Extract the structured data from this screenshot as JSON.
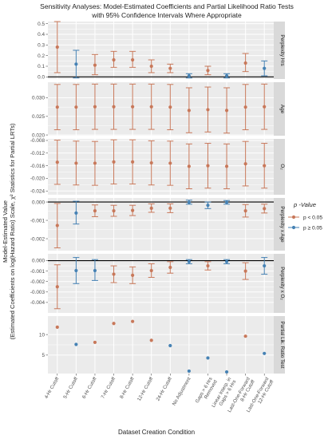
{
  "chart_data": {
    "type": "scatter",
    "title": "Sensitivity Analyses: Model-Estimated Coefficients and Partial Likelihood Ratio Tests",
    "subtitle": "with 95% Confidence Intervals Where Appropriate",
    "xlabel": "Dataset Creation Condition",
    "ylabel_line1": "Model-Estimated Value",
    "ylabel_line2": "(Estimated Coefficients on log(Hazard Ratio) Scale, χ² Statistics for Partial LRTs)",
    "categories": [
      "4-Hr Cutoff",
      "5-Hr Cutoff",
      "6-Hr Cutoff",
      "7-Hr Cutoff",
      "8-Hr Cutoff",
      "12-Hr Cutoff",
      "24-Hr Cutoff",
      "No Adjustment",
      "Gaps > 6 Hrs Removed",
      "Linear Interp. in Gaps > 6 Hrs",
      "Last-One-Forward 8-Hr Cutoff",
      "Last-One-Forward 12-Hr Cutoff"
    ],
    "legend": {
      "title": "p -Value",
      "entries": [
        {
          "label": "p < 0.05",
          "color": "#c8785a"
        },
        {
          "label": "p ≥ 0.05",
          "color": "#4682b4"
        }
      ]
    },
    "colors": {
      "sig": "#c8785a",
      "nonsig": "#4682b4",
      "panel_bg": "#ebebeb",
      "strip_bg": "#d9d9d9",
      "grid": "#ffffff",
      "zero_line": "#000000"
    },
    "panels": [
      {
        "label": "Perplexity Hrs",
        "ylim": [
          -0.02,
          0.52
        ],
        "ticks": [
          0.0,
          0.1,
          0.2,
          0.3,
          0.4,
          0.5
        ],
        "tick_labels": [
          "0.0",
          "0.1",
          "0.2",
          "0.3",
          "0.4",
          "0.5"
        ],
        "zero_line": true,
        "est": [
          0.28,
          0.12,
          0.11,
          0.16,
          0.16,
          0.1,
          0.08,
          0.01,
          0.06,
          0.01,
          0.13,
          0.08
        ],
        "lo": [
          0.04,
          -0.01,
          0.02,
          0.09,
          0.09,
          0.04,
          0.04,
          -0.01,
          0.02,
          -0.01,
          0.05,
          0.01
        ],
        "hi": [
          0.52,
          0.25,
          0.21,
          0.24,
          0.24,
          0.16,
          0.12,
          0.03,
          0.1,
          0.03,
          0.22,
          0.15
        ],
        "sig": [
          true,
          false,
          true,
          true,
          true,
          true,
          true,
          false,
          true,
          false,
          true,
          false
        ]
      },
      {
        "label": "Age",
        "ylim": [
          0.0198,
          0.0342
        ],
        "ticks": [
          0.02,
          0.025,
          0.03
        ],
        "tick_labels": [
          "0.020",
          "0.025",
          "0.030"
        ],
        "zero_line": false,
        "est": [
          0.0275,
          0.0275,
          0.0276,
          0.0276,
          0.0276,
          0.0276,
          0.0275,
          0.0266,
          0.0268,
          0.0266,
          0.0275,
          0.0276
        ],
        "lo": [
          0.0214,
          0.0214,
          0.0215,
          0.0215,
          0.0215,
          0.0215,
          0.0214,
          0.0206,
          0.0208,
          0.0205,
          0.0214,
          0.0215
        ],
        "hi": [
          0.0336,
          0.0336,
          0.0337,
          0.0337,
          0.0337,
          0.0337,
          0.0336,
          0.0327,
          0.0329,
          0.0327,
          0.0336,
          0.0337
        ],
        "sig": [
          true,
          true,
          true,
          true,
          true,
          true,
          true,
          true,
          true,
          true,
          true,
          true
        ]
      },
      {
        "label": "O₂",
        "ylim": [
          -0.0252,
          -0.0075
        ],
        "ticks": [
          -0.024,
          -0.02,
          -0.016,
          -0.012,
          -0.008
        ],
        "tick_labels": [
          "-0.024",
          "-0.020",
          "-0.016",
          "-0.012",
          "-0.008"
        ],
        "zero_line": false,
        "est": [
          -0.0149,
          -0.0152,
          -0.0152,
          -0.0148,
          -0.0148,
          -0.0151,
          -0.0152,
          -0.0162,
          -0.016,
          -0.0162,
          -0.0154,
          -0.016
        ],
        "lo": [
          -0.0219,
          -0.0221,
          -0.0222,
          -0.0218,
          -0.0218,
          -0.0221,
          -0.0222,
          -0.0233,
          -0.0231,
          -0.0233,
          -0.0224,
          -0.0231
        ],
        "hi": [
          -0.0079,
          -0.0082,
          -0.0083,
          -0.0078,
          -0.0078,
          -0.0081,
          -0.0082,
          -0.0091,
          -0.0089,
          -0.0091,
          -0.0083,
          -0.0089
        ],
        "sig": [
          true,
          true,
          true,
          true,
          true,
          true,
          true,
          true,
          true,
          true,
          true,
          true
        ]
      },
      {
        "label": "Perplexity x Age",
        "ylim": [
          -0.00265,
          0.00022
        ],
        "ticks": [
          -0.002,
          -0.001,
          0.0
        ],
        "tick_labels": [
          "-0.002",
          "-0.001",
          "0.000"
        ],
        "zero_line": true,
        "est": [
          -0.00128,
          -0.0006,
          -0.00048,
          -0.00048,
          -0.00046,
          -0.00034,
          -0.00034,
          -2e-05,
          -0.00018,
          -2e-05,
          -0.00048,
          -0.00036
        ],
        "lo": [
          -0.0025,
          -0.0012,
          -0.0008,
          -0.00078,
          -0.00074,
          -0.00056,
          -0.00058,
          -0.00012,
          -0.00036,
          -0.00012,
          -0.00082,
          -0.0006
        ],
        "hi": [
          -8e-05,
          4e-05,
          -0.00016,
          -0.00018,
          -0.00018,
          -0.0001,
          -0.0001,
          0.0001,
          0.0,
          8e-05,
          -0.00014,
          -0.00012
        ],
        "sig": [
          true,
          false,
          true,
          true,
          true,
          true,
          true,
          false,
          false,
          false,
          true,
          true
        ]
      },
      {
        "label": "Perplexity x O₂",
        "ylim": [
          -0.005,
          0.00065
        ],
        "ticks": [
          -0.004,
          -0.003,
          -0.002,
          -0.001,
          0.0
        ],
        "tick_labels": [
          "-0.004",
          "-0.003",
          "-0.002",
          "-0.001",
          "0.000"
        ],
        "zero_line": true,
        "est": [
          -0.0025,
          -0.00095,
          -0.00095,
          -0.0013,
          -0.0014,
          -0.00095,
          -0.00065,
          -0.0001,
          -0.0005,
          -0.0001,
          -0.001,
          -0.0005
        ],
        "lo": [
          -0.0046,
          -0.0022,
          -0.0019,
          -0.0021,
          -0.0022,
          -0.0016,
          -0.0012,
          -0.0003,
          -0.0009,
          -0.0003,
          -0.0018,
          -0.0013
        ],
        "hi": [
          -0.0004,
          0.0003,
          0.0001,
          -0.0005,
          -0.0006,
          -0.0003,
          -0.0001,
          0.0001,
          -0.0001,
          0.0001,
          -0.0002,
          0.0003
        ],
        "sig": [
          true,
          false,
          false,
          true,
          true,
          true,
          true,
          false,
          true,
          false,
          true,
          false
        ]
      },
      {
        "label": "Partial Lik. Ratio Test",
        "ylim": [
          0.5,
          14.5
        ],
        "ticks": [
          5,
          10
        ],
        "tick_labels": [
          "5",
          "10"
        ],
        "zero_line": false,
        "est": [
          11.8,
          7.6,
          8.1,
          12.7,
          13.2,
          8.6,
          7.3,
          1.1,
          4.3,
          0.9,
          9.6,
          5.4
        ],
        "lo": null,
        "hi": null,
        "sig": [
          true,
          false,
          true,
          true,
          true,
          true,
          false,
          false,
          false,
          false,
          true,
          false
        ]
      }
    ]
  }
}
